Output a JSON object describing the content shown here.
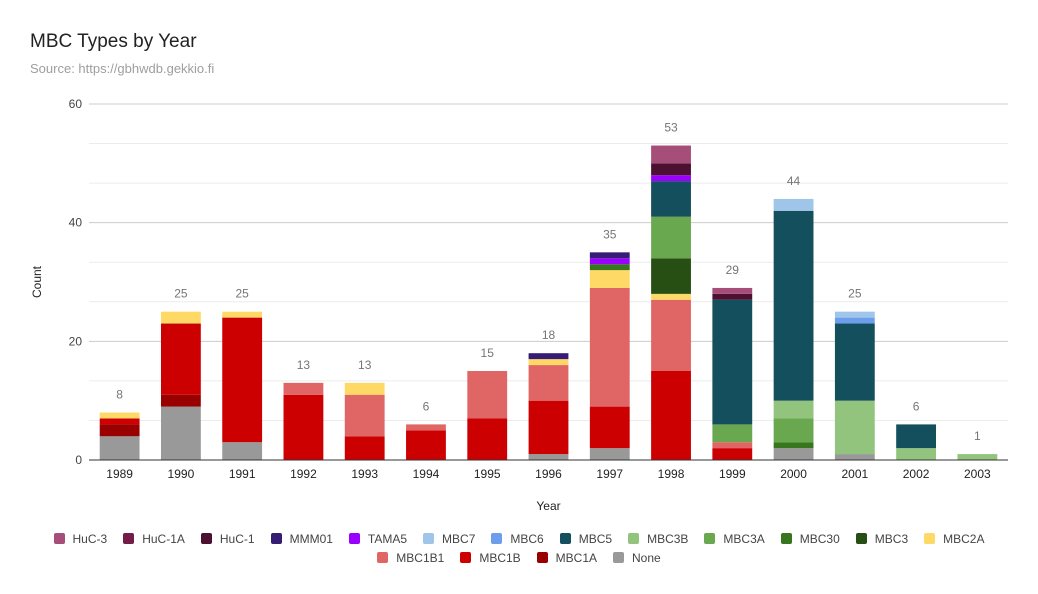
{
  "title": "MBC Types by Year",
  "subtitle": "Source: https://gbhwdb.gekkio.fi",
  "chart_data": {
    "type": "bar",
    "stacked": true,
    "xlabel": "Year",
    "ylabel": "Count",
    "ylim": [
      0,
      60
    ],
    "yticks": [
      0,
      20,
      40,
      60
    ],
    "grid": true,
    "legend_position": "bottom",
    "categories": [
      "1989",
      "1990",
      "1991",
      "1992",
      "1993",
      "1994",
      "1995",
      "1996",
      "1997",
      "1998",
      "1999",
      "2000",
      "2001",
      "2002",
      "2003"
    ],
    "totals": [
      8,
      25,
      25,
      13,
      13,
      6,
      15,
      18,
      35,
      53,
      29,
      44,
      25,
      6,
      1
    ],
    "series": [
      {
        "name": "None",
        "color": "#999999",
        "values": [
          4,
          9,
          3,
          0,
          0,
          0,
          0,
          1,
          2,
          0,
          0,
          2,
          1,
          0,
          0
        ]
      },
      {
        "name": "MBC1A",
        "color": "#990000",
        "values": [
          2,
          2,
          0,
          0,
          0,
          0,
          0,
          0,
          0,
          0,
          0,
          0,
          0,
          0,
          0
        ]
      },
      {
        "name": "MBC1B",
        "color": "#cc0000",
        "values": [
          1,
          12,
          21,
          11,
          4,
          5,
          7,
          9,
          7,
          15,
          2,
          0,
          0,
          0,
          0
        ]
      },
      {
        "name": "MBC1B1",
        "color": "#e06666",
        "values": [
          0,
          0,
          0,
          2,
          7,
          1,
          8,
          6,
          20,
          12,
          1,
          0,
          0,
          0,
          0
        ]
      },
      {
        "name": "MBC2A",
        "color": "#ffd966",
        "values": [
          1,
          2,
          1,
          0,
          2,
          0,
          0,
          1,
          3,
          1,
          0,
          0,
          0,
          0,
          0
        ]
      },
      {
        "name": "MBC3",
        "color": "#274e13",
        "values": [
          0,
          0,
          0,
          0,
          0,
          0,
          0,
          0,
          0,
          6,
          0,
          0,
          0,
          0,
          0
        ]
      },
      {
        "name": "MBC30",
        "color": "#38761d",
        "values": [
          0,
          0,
          0,
          0,
          0,
          0,
          0,
          0,
          1,
          0,
          0,
          1,
          0,
          0,
          0
        ]
      },
      {
        "name": "MBC3A",
        "color": "#6aa84f",
        "values": [
          0,
          0,
          0,
          0,
          0,
          0,
          0,
          0,
          0,
          7,
          3,
          4,
          0,
          0,
          0
        ]
      },
      {
        "name": "MBC3B",
        "color": "#93c47d",
        "values": [
          0,
          0,
          0,
          0,
          0,
          0,
          0,
          0,
          0,
          0,
          0,
          3,
          9,
          2,
          1
        ]
      },
      {
        "name": "MBC5",
        "color": "#134f5c",
        "values": [
          0,
          0,
          0,
          0,
          0,
          0,
          0,
          0,
          0,
          6,
          21,
          32,
          13,
          4,
          0
        ]
      },
      {
        "name": "MBC6",
        "color": "#6d9eeb",
        "values": [
          0,
          0,
          0,
          0,
          0,
          0,
          0,
          0,
          0,
          0,
          0,
          0,
          1,
          0,
          0
        ]
      },
      {
        "name": "MBC7",
        "color": "#9fc5e8",
        "values": [
          0,
          0,
          0,
          0,
          0,
          0,
          0,
          0,
          0,
          0,
          0,
          2,
          1,
          0,
          0
        ]
      },
      {
        "name": "TAMA5",
        "color": "#9900ff",
        "values": [
          0,
          0,
          0,
          0,
          0,
          0,
          0,
          0,
          1,
          1,
          0,
          0,
          0,
          0,
          0
        ]
      },
      {
        "name": "MMM01",
        "color": "#351c75",
        "values": [
          0,
          0,
          0,
          0,
          0,
          0,
          0,
          1,
          1,
          0,
          0,
          0,
          0,
          0,
          0
        ]
      },
      {
        "name": "HuC-1",
        "color": "#4c1130",
        "values": [
          0,
          0,
          0,
          0,
          0,
          0,
          0,
          0,
          0,
          2,
          1,
          0,
          0,
          0,
          0
        ]
      },
      {
        "name": "HuC-1A",
        "color": "#741b47",
        "values": [
          0,
          0,
          0,
          0,
          0,
          0,
          0,
          0,
          0,
          0,
          0,
          0,
          0,
          0,
          0
        ]
      },
      {
        "name": "HuC-3",
        "color": "#a64d79",
        "values": [
          0,
          0,
          0,
          0,
          0,
          0,
          0,
          0,
          0,
          3,
          1,
          0,
          0,
          0,
          0
        ]
      }
    ],
    "legend_order": [
      [
        "HuC-3",
        "HuC-1A",
        "HuC-1",
        "MMM01",
        "TAMA5",
        "MBC7",
        "MBC6",
        "MBC5",
        "MBC3B",
        "MBC3A",
        "MBC30",
        "MBC3",
        "MBC2A"
      ],
      [
        "MBC1B1",
        "MBC1B",
        "MBC1A",
        "None"
      ]
    ]
  }
}
